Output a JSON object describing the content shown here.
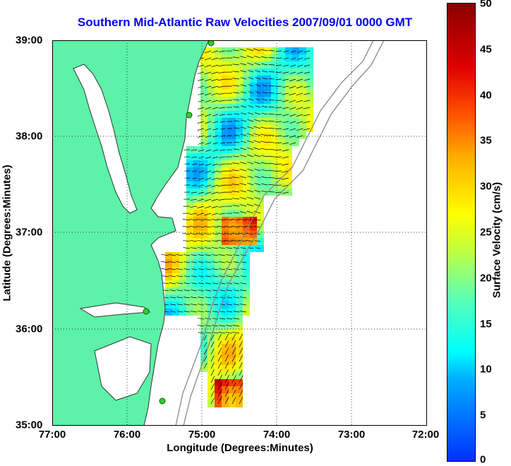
{
  "title": "Southern Mid-Atlantic Raw Velocities 2007/09/01 0000 GMT",
  "axes": {
    "xlabel": "Longitude (Degrees:Minutes)",
    "ylabel": "Latitude (Degrees:Minutes)",
    "xticks": [
      "77:00",
      "76:00",
      "75:00",
      "74:00",
      "73:00",
      "72:00"
    ],
    "yticks": [
      "39:00",
      "38:00",
      "37:00",
      "36:00",
      "35:00"
    ]
  },
  "colorbar": {
    "label": "Surface Velocity (cm/s)",
    "ticks": [
      "50",
      "45",
      "40",
      "35",
      "30",
      "25",
      "20",
      "15",
      "10",
      "5",
      "0"
    ],
    "range": [
      0,
      50
    ]
  },
  "colors": {
    "land": "#5cf2a8",
    "ocean": "#ffffff",
    "title": "#0000ee",
    "coastline": "#333333",
    "bathymetry": "#888888"
  }
}
